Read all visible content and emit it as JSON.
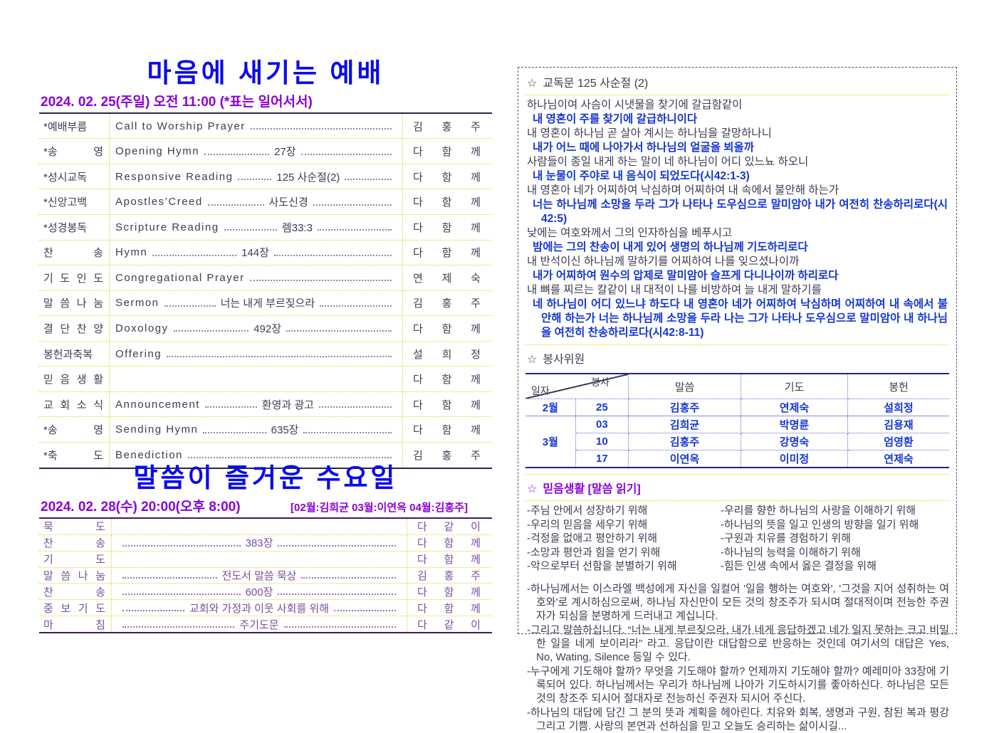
{
  "colors": {
    "title_blue": "#0a0af0",
    "purple": "#8a00d8",
    "response_blue": "#1536d2",
    "grid_yellow": "#cede2e",
    "navy_border": "#1b2590",
    "wed_purple": "#7a4f9b"
  },
  "sunday": {
    "title": "마음에 새기는 예배",
    "date": "2024. 02. 25(주일) 오전 11:00 (*표는 일어서서)",
    "rows": [
      {
        "label": "*예배부름",
        "en": "Call to Worship Prayer",
        "ko": "",
        "person": "김 홍 주"
      },
      {
        "label": "*송 영",
        "en": "Opening Hymn",
        "ko": "27장",
        "person": "다 함 께"
      },
      {
        "label": "*성시교독",
        "en": "Responsive Reading",
        "ko": "125 사순절(2)",
        "person": "다 함 께"
      },
      {
        "label": "*신앙고백",
        "en": "Apostles’Creed",
        "ko": "사도신경",
        "person": "다 함 께"
      },
      {
        "label": "*성경봉독",
        "en": "Scripture Reading",
        "ko": "렘33:3",
        "person": "다 함 께"
      },
      {
        "label": "찬 송",
        "en": "Hymn",
        "ko": "144장",
        "person": "다 함 께"
      },
      {
        "label": "기 도 인 도",
        "en": "Congregational Prayer",
        "ko": "",
        "person": "연 제 숙"
      },
      {
        "label": "말 씀 나 눔",
        "en": "Sermon",
        "ko": "너는 내게 부르짖으라",
        "person": "김 홍 주"
      },
      {
        "label": "결 단 찬 양",
        "en": "Doxology",
        "ko": "492장",
        "person": "다 함 께"
      },
      {
        "label": "봉헌과축복",
        "en": "Offering",
        "ko": "",
        "person": "설 희 정"
      },
      {
        "label": "믿 음 생 활",
        "en": "",
        "ko": "",
        "person": "다 함 께"
      },
      {
        "label": "교 회 소 식",
        "en": "Announcement",
        "ko": "환영과 광고",
        "person": "다 함 께"
      },
      {
        "label": "*송 영",
        "en": "Sending Hymn",
        "ko": "635장",
        "person": "다 함 께"
      },
      {
        "label": "*축 도",
        "en": "Benediction",
        "ko": "",
        "person": "김 홍 주"
      }
    ]
  },
  "wednesday": {
    "title": "말씀이 즐거운 수요일",
    "date": "2024. 02. 28(수) 20:00(오후 8:00)",
    "leaders": "[02월:김희균 03월:이연옥 04월:김홍주]",
    "rows": [
      {
        "label": "묵 도",
        "en": "",
        "ko": "",
        "person": "다 같 이"
      },
      {
        "label": "찬 송",
        "en": "",
        "ko": "383장",
        "person": "다 함 께"
      },
      {
        "label": "기 도",
        "en": "",
        "ko": "",
        "person": "다 함 께"
      },
      {
        "label": "말 씀 나 눔",
        "en": "",
        "ko": "전도서 말씀 묵상",
        "person": "김 홍 주"
      },
      {
        "label": "찬 송",
        "en": "",
        "ko": "600장",
        "person": "다 함 께"
      },
      {
        "label": "중 보 기 도",
        "en": "",
        "ko": "교회와 가정과 이웃 사회를 위해",
        "person": "다 함 께"
      },
      {
        "label": "마 침",
        "en": "",
        "ko": "주기도문",
        "person": "다 같 이"
      }
    ]
  },
  "kyodok": {
    "star": "☆",
    "title": "교독문 125 사순절 (2)",
    "lines": [
      {
        "type": "plain",
        "text": "하나님이여 사슴이 시냇물을 찾기에 갈급함같이"
      },
      {
        "type": "response",
        "text": "내 영혼이 주를 찾기에 갈급하니이다"
      },
      {
        "type": "plain",
        "text": "내 영혼이 하나님 곧 살아 계시는 하나님을 갈망하나니"
      },
      {
        "type": "response",
        "text": "내가 어느 때에 나아가서 하나님의 얼굴을 뵈올까"
      },
      {
        "type": "plain",
        "text": "사람들이 종일 내게 하는 말이 네 하나님이 어디 있느뇨 하오니"
      },
      {
        "type": "response",
        "text": "내 눈물이 주야로 내 음식이 되었도다(시42:1-3)"
      },
      {
        "type": "plain",
        "text": "내 영혼아 네가 어찌하여 낙심하며 어찌하여 내 속에서 불안해 하는가"
      },
      {
        "type": "response",
        "text": "너는 하나님께 소망을 두라 그가 나타나 도우심으로 말미암아 내가 여전히 찬송하리로다(시42:5)"
      },
      {
        "type": "plain",
        "text": "낮에는 여호와께서 그의 인자하심을 베푸시고"
      },
      {
        "type": "response",
        "text": "밤에는 그의 찬송이 내게 있어 생명의 하나님께 기도하리로다"
      },
      {
        "type": "plain",
        "text": "내 반석이신 하나님께 말하기를 어찌하여 나를 잊으셨나이까"
      },
      {
        "type": "response",
        "text": "내가 어찌하여 원수의 압제로 말미암아 슬프게 다니나이까 하리로다"
      },
      {
        "type": "plain",
        "text": "내 뼈를 찌르는 칼같이 내 대적이 나를 비방하여 늘 내게 말하기를"
      },
      {
        "type": "response",
        "text": "네 하나님이 어디 있느냐 하도다 내 영혼아 네가 어찌하여 낙심하며 어찌하여 내 속에서 불안해 하는가 너는 하나님께 소망을 두라 나는 그가 나타나 도우심으로 말미암아 내 하나님을 여전히 찬송하리로다(시42:8-11)"
      }
    ]
  },
  "volunteers": {
    "star": "☆",
    "title": "봉사위원",
    "header": {
      "service": "봉사",
      "date": "일자",
      "sermon": "말씀",
      "prayer": "기도",
      "offering": "봉헌"
    },
    "rows": [
      {
        "month": "2월",
        "day": "25",
        "sermon": "김홍주",
        "prayer": "연제숙",
        "offering": "설희정"
      },
      {
        "month": "3월",
        "day": "03",
        "sermon": "김희균",
        "prayer": "박명륜",
        "offering": "김용재"
      },
      {
        "month": "",
        "day": "10",
        "sermon": "김홍주",
        "prayer": "강명숙",
        "offering": "엄영환"
      },
      {
        "month": "",
        "day": "17",
        "sermon": "이연옥",
        "prayer": "이미정",
        "offering": "연제숙"
      }
    ]
  },
  "faith": {
    "star": "☆",
    "title": "믿음생활 [말씀 읽기]",
    "left": [
      "-주님 안에서 성장하기 위해",
      "-우리의 믿음을 세우기 위해",
      "-걱정을 없애고 평안하기 위해",
      "-소망과 평안과 힘을 얻기 위해",
      "-악으로부터 선함을 분별하기 위해"
    ],
    "right": [
      "-우리를 향한 하나님의 사랑을 이해하기 위해",
      "-하나님의 뜻을 일고 인생의 방향을 일기 위해",
      "-구원과 치유를 경험하기 위해",
      "-하나님의 능력을 이해하기 위해",
      "-힘든 인생 속에서 옳은 결정을 위해"
    ],
    "paragraphs": [
      "-하나님께서는 이스라엘 백성에게 자신을 일컬어 '일을 행하는 여호와', '그것을 지어 성취하는 여호와'로 계시하심으로써, 하나님 자신만이 모든 것의 창조주가 되시며 절대적이며 전능한 주권자가 되심을 분명하게 드러내고 계십니다.",
      "-그리고 말씀하십니다. “너는 내게 부르짖으라, 내가 네게 응답하겠고 네가 일지 못하는 크고 비밀한 일을 네게 보이리라” 라고. 응답이란 대답함으로 반응하는 것인데 여기서의 대답은 Yes, No, Wating, Silence 등일 수 있다.",
      "-누구에게 기도해야 할까? 무엇을 기도해야 할까? 언제까지 기도해야 할까? 예레미아 33장에 기록되어 있다. 하나님께서는 우리가 하나님께 나아가 기도하시기를 좋아하신다. 하나님은 모든 것의 창조주 되시어 절대자로 전능하신 주권자 되시어 주신다.",
      "-하나님의 대답에 담긴 그 분의 뜻과 계획을 헤아린다. 치유와 회복, 생명과 구원, 참된 복과 평강 그리고 기쁨. 사랑의 본연과 선하심을 믿고 오늘도 승리하는 삶이시길..."
    ]
  }
}
